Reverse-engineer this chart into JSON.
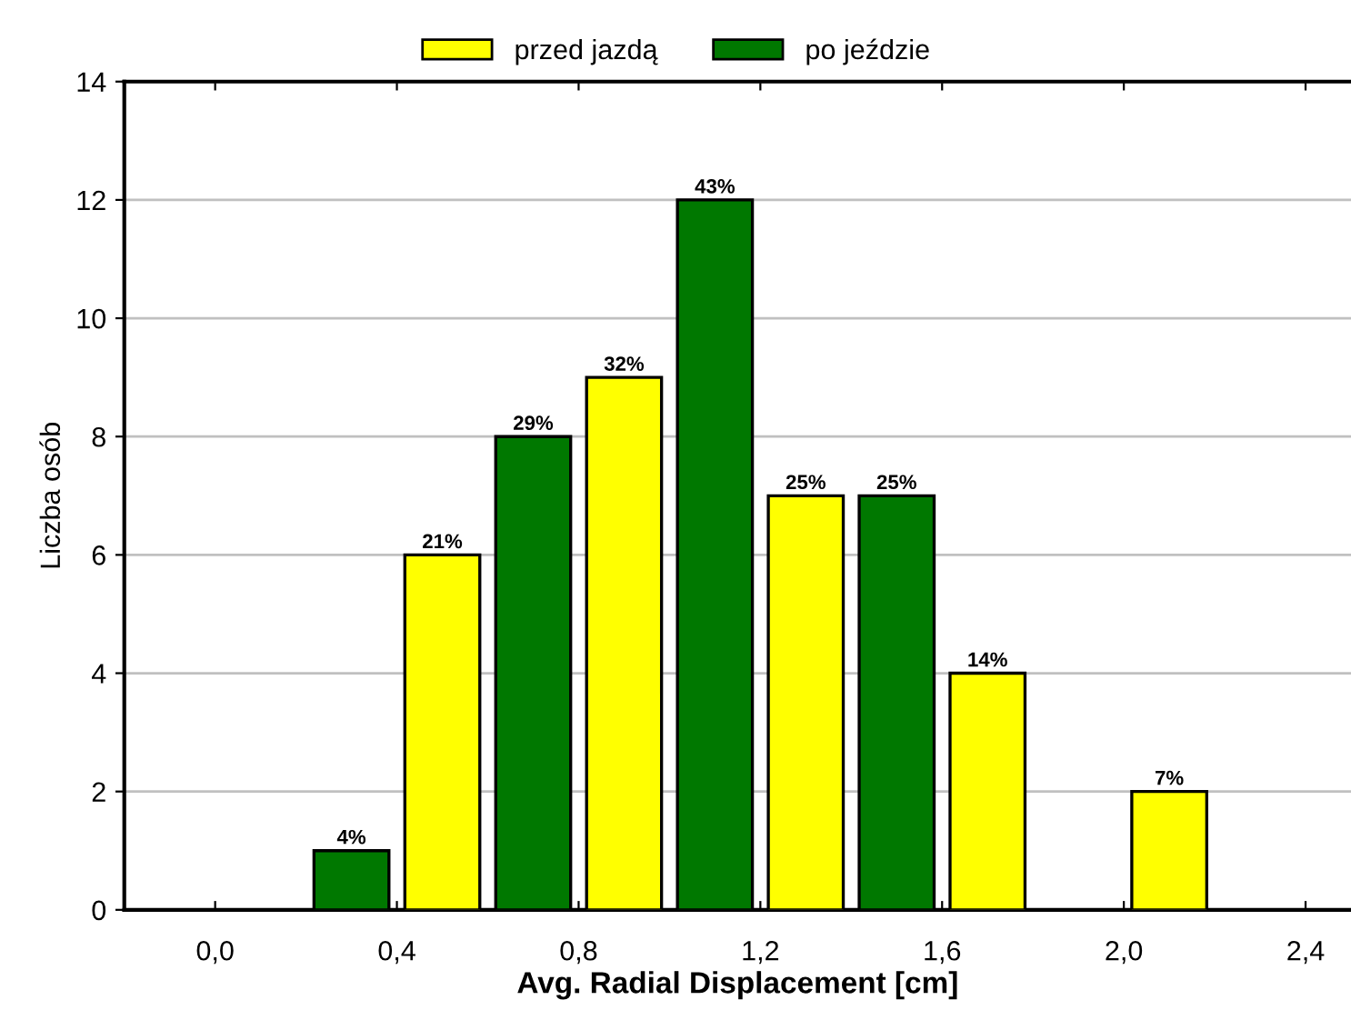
{
  "chart_data": {
    "type": "bar",
    "xlabel": "Avg. Radial Displacement [cm]",
    "ylabel": "Liczba osób",
    "series": [
      {
        "name": "przed jazdą",
        "color": "#ffff00",
        "x": [
          0.5,
          0.9,
          1.3,
          1.7,
          2.1
        ],
        "values": [
          6,
          9,
          7,
          4,
          2
        ]
      },
      {
        "name": "po jeździe",
        "color": "#007800",
        "x": [
          0.3,
          0.7,
          1.1,
          1.5
        ],
        "values": [
          1,
          8,
          12,
          7
        ]
      }
    ],
    "annotations": [
      {
        "text": "4%",
        "x": 0.3,
        "y": 1
      },
      {
        "text": "21%",
        "x": 0.5,
        "y": 6
      },
      {
        "text": "29%",
        "x": 0.7,
        "y": 8
      },
      {
        "text": "32%",
        "x": 0.9,
        "y": 9
      },
      {
        "text": "43%",
        "x": 1.1,
        "y": 12
      },
      {
        "text": "25%",
        "x": 1.3,
        "y": 7
      },
      {
        "text": "25%",
        "x": 1.5,
        "y": 7
      },
      {
        "text": "14%",
        "x": 1.7,
        "y": 4
      },
      {
        "text": "7%",
        "x": 2.1,
        "y": 2
      }
    ],
    "xlim": [
      -0.2,
      2.5
    ],
    "xticks": [
      {
        "value": 0,
        "label": "0,0"
      },
      {
        "value": 0.4,
        "label": "0,4"
      },
      {
        "value": 0.8,
        "label": "0,8"
      },
      {
        "value": 1.2,
        "label": "1,2"
      },
      {
        "value": 1.6,
        "label": "1,6"
      },
      {
        "value": 2.0,
        "label": "2,0"
      },
      {
        "value": 2.4,
        "label": "2,4"
      }
    ],
    "ylim": [
      0,
      14
    ],
    "yticks": [
      0,
      2,
      4,
      6,
      8,
      10,
      12,
      14
    ],
    "grid": "y",
    "legend": "top"
  }
}
